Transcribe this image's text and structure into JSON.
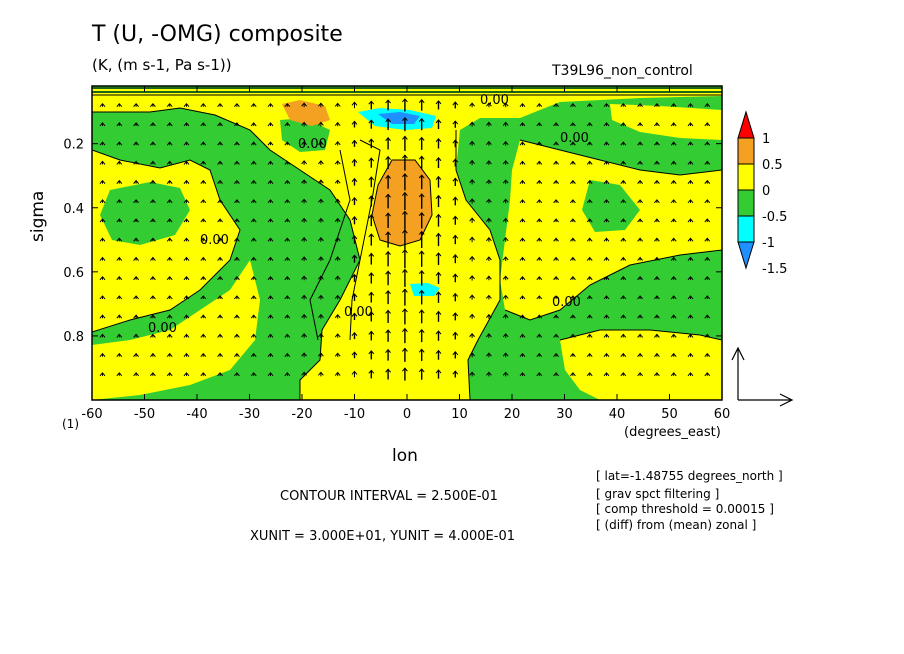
{
  "header": {
    "title": "T (U, -OMG) composite",
    "subtitle": "(K, (m s-1, Pa s-1))",
    "run_name": "T39L96_non_control",
    "marker": "(1)"
  },
  "notes": [
    "[ lat=-1.48755 degrees_north ]",
    "[ grav spct filtering ]",
    "[ comp threshold = 0.00015 ]",
    "[ (diff) from (mean) zonal ]"
  ],
  "footer": {
    "contour_interval": "CONTOUR INTERVAL = 2.500E-01",
    "vector_units": "XUNIT = 3.000E+01, YUNIT = 4.000E-01"
  },
  "colors": {
    "red": "#ff0000",
    "orange": "#f4a020",
    "yellow": "#ffff00",
    "green": "#33cc33",
    "cyan": "#00ffff",
    "blue": "#1e90ff"
  },
  "chart_data": {
    "type": "contour",
    "title": "T (U, -OMG) composite",
    "subtitle": "(K, (m s-1, Pa s-1))",
    "xlabel": "lon",
    "xunits": "(degrees_east)",
    "ylabel": "sigma",
    "xlim": [
      -60,
      60
    ],
    "ylim": [
      1.0,
      0.02
    ],
    "x_ticks": [
      -60,
      -50,
      -40,
      -30,
      -20,
      -10,
      0,
      10,
      20,
      30,
      40,
      50,
      60
    ],
    "y_ticks": [
      0.2,
      0.4,
      0.6,
      0.8
    ],
    "contour_interval": 0.25,
    "contour_label": "0.00",
    "colorbar": {
      "levels": [
        1,
        0.5,
        0,
        -0.5,
        -1,
        -1.5
      ],
      "labels": [
        "1",
        "0.5",
        "0",
        "-0.5",
        "-1",
        "-1.5"
      ],
      "colors": [
        "#ff0000",
        "#f4a020",
        "#ffff00",
        "#33cc33",
        "#00ffff",
        "#1e90ff"
      ]
    },
    "vector_units": {
      "xunit": 30.0,
      "yunit": 0.4
    },
    "grid": false
  }
}
